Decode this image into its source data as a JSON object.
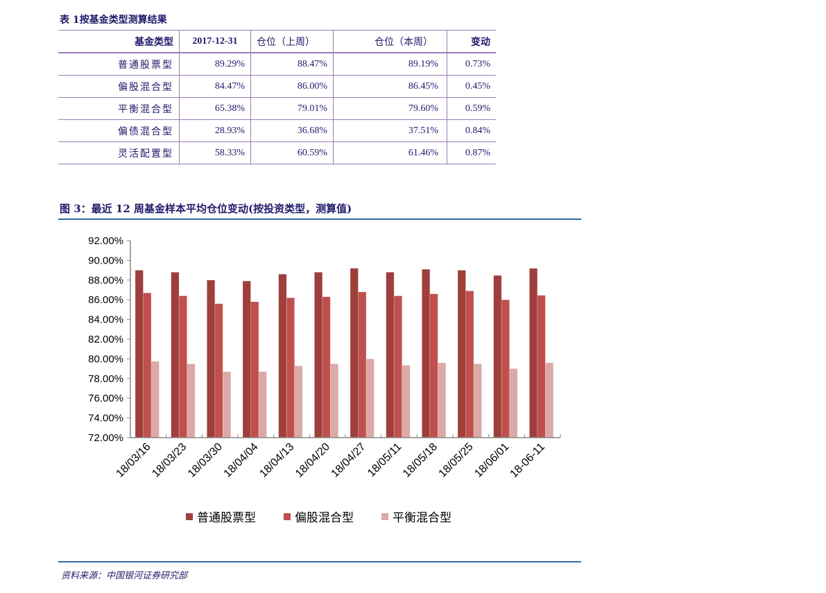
{
  "table": {
    "title": "表 1按基金类型测算结果",
    "headers": [
      "基金类型",
      "2017-12-31",
      "仓位（上周）",
      "仓位（本周）",
      "变动"
    ],
    "rows": [
      [
        "普通股票型",
        "89.29%",
        "88.47%",
        "89.19%",
        "0.73%"
      ],
      [
        "偏股混合型",
        "84.47%",
        "86.00%",
        "86.45%",
        "0.45%"
      ],
      [
        "平衡混合型",
        "65.38%",
        "79.01%",
        "79.60%",
        "0.59%"
      ],
      [
        "偏债混合型",
        "28.93%",
        "36.68%",
        "37.51%",
        "0.84%"
      ],
      [
        "灵活配置型",
        "58.33%",
        "60.59%",
        "61.46%",
        "0.87%"
      ]
    ]
  },
  "figure_title": "图 3：最近 12 周基金样本平均仓位变动(按投资类型，测算值)",
  "source": "资料来源：中国银河证券研究部",
  "chart_data": {
    "type": "bar",
    "title": "",
    "xlabel": "",
    "ylabel": "",
    "ylim": [
      72,
      92
    ],
    "y_ticks": [
      "72.00%",
      "74.00%",
      "76.00%",
      "78.00%",
      "80.00%",
      "82.00%",
      "84.00%",
      "86.00%",
      "88.00%",
      "90.00%",
      "92.00%"
    ],
    "grid": false,
    "legend": "bottom",
    "categories": [
      "18/03/16",
      "18/03/23",
      "18/03/30",
      "18/04/04",
      "18/04/13",
      "18/04/20",
      "18/04/27",
      "18/05/11",
      "18/05/18",
      "18/05/25",
      "18/06/01",
      "18-06-11"
    ],
    "series": [
      {
        "name": "普通股票型",
        "color": "#9e3f3c",
        "values": [
          89.0,
          88.8,
          88.0,
          87.9,
          88.6,
          88.8,
          89.2,
          88.8,
          89.1,
          89.0,
          88.47,
          89.19
        ]
      },
      {
        "name": "偏股混合型",
        "color": "#c0504d",
        "values": [
          86.7,
          86.4,
          85.6,
          85.8,
          86.2,
          86.3,
          86.8,
          86.4,
          86.6,
          86.9,
          86.0,
          86.45
        ]
      },
      {
        "name": "平衡混合型",
        "color": "#dba9a8",
        "values": [
          79.75,
          79.5,
          78.7,
          78.7,
          79.3,
          79.5,
          80.0,
          79.35,
          79.6,
          79.5,
          79.01,
          79.6
        ]
      }
    ]
  }
}
